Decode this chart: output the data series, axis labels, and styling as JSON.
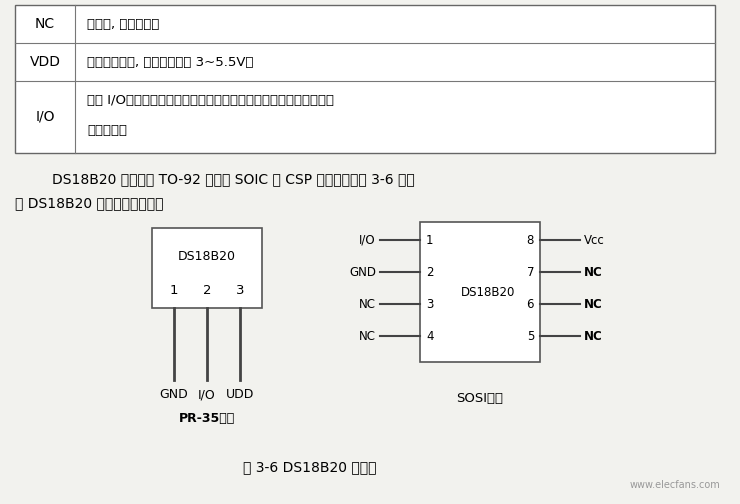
{
  "bg_color": "#f2f2ee",
  "table_rows": [
    {
      "label": "NC",
      "text": "空引脚, 一无连接；"
    },
    {
      "label": "VDD",
      "text": "可选电源电压, 电源电压范围 3~5.5V；"
    },
    {
      "label": "I/O",
      "text": "数据 I/O，对于单线操作：漏极开路。当工作在寄生电源模式时用来",
      "text2": "提供电源。"
    }
  ],
  "para_line1": "DS18B20 主要选用 TO-92 封装或 SOIC 及 CSP 封装形式。图 3-6 所示",
  "para_line2": "为 DS18B20 的内部结构框图：",
  "caption": "图 3-6 DS18B20 的封装",
  "watermark": "www.elecfans.com",
  "to92_label": "DS18B20",
  "to92_pins": [
    "1",
    "2",
    "3"
  ],
  "to92_bottom": [
    "GND",
    "I/O",
    "UDD"
  ],
  "to92_package": "PR-35封装",
  "soic_label": "DS18B20",
  "soic_left_pins": [
    "I/O",
    "GND",
    "NC",
    "NC"
  ],
  "soic_left_nums": [
    "1",
    "2",
    "3",
    "4"
  ],
  "soic_right_nums": [
    "8",
    "7",
    "6",
    "5"
  ],
  "soic_right_pins": [
    "Vcc",
    "NC",
    "NC",
    "NC"
  ],
  "soic_package": "SOSI封装"
}
